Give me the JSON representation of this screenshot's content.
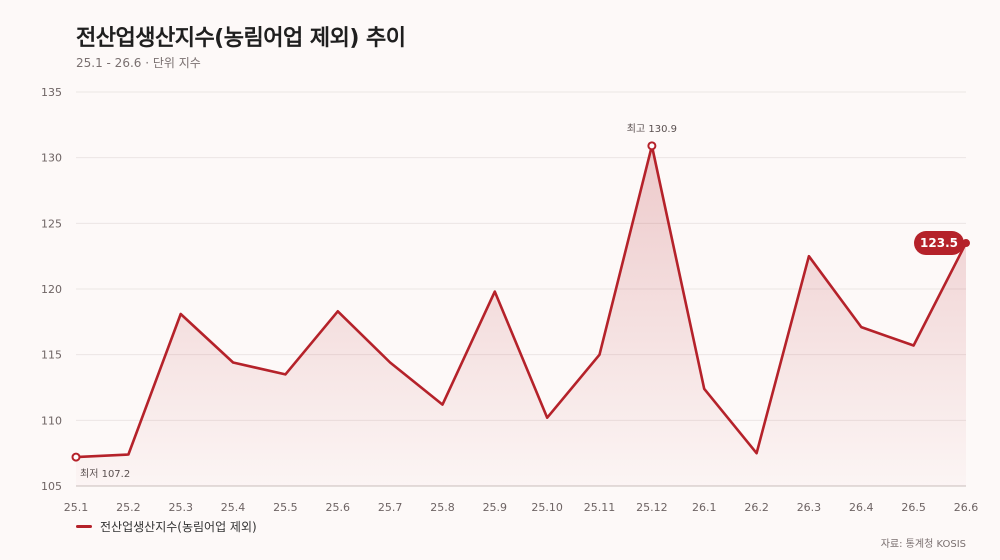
{
  "header": {
    "title": "전산업생산지수(농림어업 제외) 추이",
    "subtitle": "25.1 - 26.6 · 단위 지수"
  },
  "legend": {
    "label": "전산업생산지수(농림어업 제외)"
  },
  "source": "자료: 통계청 KOSIS",
  "colors": {
    "line": "#b5222a",
    "grid": "#ece6e5",
    "text": "#6e6464"
  },
  "chart_data": {
    "type": "area",
    "x": [
      "25.1",
      "25.2",
      "25.3",
      "25.4",
      "25.5",
      "25.6",
      "25.7",
      "25.8",
      "25.9",
      "25.10",
      "25.11",
      "25.12",
      "26.1",
      "26.2",
      "26.3",
      "26.4",
      "26.5",
      "26.6"
    ],
    "series": [
      {
        "name": "전산업생산지수(농림어업 제외)",
        "values": [
          107.2,
          107.4,
          118.1,
          114.4,
          113.5,
          118.3,
          114.4,
          111.2,
          119.8,
          110.2,
          115.0,
          130.9,
          112.4,
          107.5,
          122.5,
          117.1,
          115.7,
          123.5
        ]
      }
    ],
    "ylim": [
      105,
      135
    ],
    "yticks": [
      105,
      110,
      115,
      120,
      125,
      130,
      135
    ],
    "grid": true,
    "annotations": {
      "max_label": "최고 130.9",
      "min_label": "최저 107.2",
      "last_label": "123.5"
    }
  }
}
